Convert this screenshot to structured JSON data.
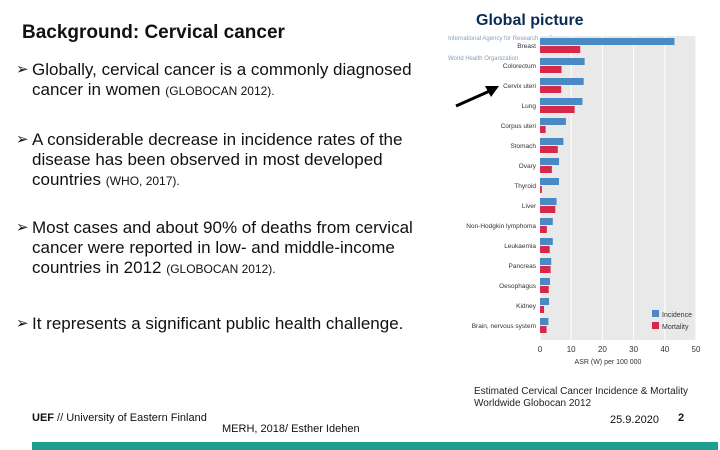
{
  "slide": {
    "title": "Background: Cervical cancer",
    "chart_heading": "Global picture",
    "bullets": [
      {
        "text": "Globally, cervical cancer is a commonly diagnosed cancer in women",
        "cite": "(GLOBOCAN 2012)."
      },
      {
        "text": "A considerable decrease in incidence rates of the disease has been observed in most developed countries",
        "cite": "(WHO, 2017)."
      },
      {
        "text": "Most cases and about 90% of deaths from cervical cancer were reported in low- and middle-income countries in 2012",
        "cite": "(GLOBOCAN 2012)."
      },
      {
        "text": "It represents a significant public health challenge.",
        "cite": ""
      }
    ],
    "caption_line1": "Estimated Cervical Cancer Incidence & Mortality",
    "caption_line2": "Worldwide Globocan   2012",
    "footer_org_bold": "UEF",
    "footer_org": " // University of Eastern Finland",
    "footer_mid": "MERH, 2018/ Esther Idehen",
    "footer_date": "25.9.2020",
    "footer_page": "2"
  },
  "chart_data": {
    "type": "bar",
    "orientation": "horizontal",
    "title": "",
    "header_text": "International Agency for Research on Cancer",
    "org_text": "World Health Organization",
    "categories": [
      "Breast",
      "Colorectum",
      "Cervix uteri",
      "Lung",
      "Corpus uteri",
      "Stomach",
      "Ovary",
      "Thyroid",
      "Liver",
      "Non-Hodgkin lymphoma",
      "Leukaemia",
      "Pancreas",
      "Oesophagus",
      "Kidney",
      "Brain, nervous system"
    ],
    "series": [
      {
        "name": "Incidence",
        "color": "#4a8ac4",
        "values": [
          43.1,
          14.3,
          14.0,
          13.6,
          8.3,
          7.5,
          6.1,
          6.1,
          5.3,
          4.1,
          4.1,
          3.6,
          3.2,
          2.9,
          2.7
        ]
      },
      {
        "name": "Mortality",
        "color": "#d62848",
        "values": [
          12.9,
          6.9,
          6.8,
          11.1,
          1.8,
          5.7,
          3.8,
          0.6,
          4.9,
          2.2,
          3.1,
          3.4,
          2.8,
          1.3,
          2.1
        ]
      }
    ],
    "x_ticks": [
      0,
      10,
      20,
      30,
      40,
      50
    ],
    "xlim": [
      0,
      50
    ],
    "xlabel": "ASR (W) per 100 000",
    "legend": "bottom-right"
  }
}
